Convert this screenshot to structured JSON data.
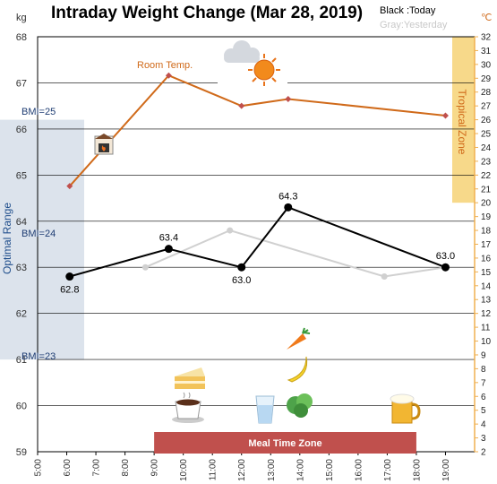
{
  "chart_data": {
    "type": "line",
    "title": "Intraday Weight Change (Mar 28, 2019)",
    "legend": {
      "today": "Black :Today",
      "yesterday": "Gray:Yesterday"
    },
    "y_left": {
      "unit": "kg",
      "range": [
        59,
        68
      ],
      "ticks": [
        "59",
        "60",
        "61",
        "62",
        "63",
        "64",
        "65",
        "66",
        "67",
        "68"
      ]
    },
    "y_right": {
      "unit": "℃",
      "range": [
        2,
        32
      ],
      "ticks": [
        "2",
        "3",
        "4",
        "5",
        "6",
        "7",
        "8",
        "9",
        "10",
        "11",
        "12",
        "13",
        "14",
        "15",
        "16",
        "17",
        "18",
        "19",
        "20",
        "21",
        "22",
        "23",
        "24",
        "25",
        "26",
        "27",
        "28",
        "29",
        "30",
        "31",
        "32"
      ]
    },
    "x_axis": {
      "range": [
        5,
        20
      ],
      "ticks": [
        "5:00",
        "6:00",
        "7:00",
        "8:00",
        "9:00",
        "10:00",
        "11:00",
        "12:00",
        "13:00",
        "14:00",
        "15:00",
        "16:00",
        "17:00",
        "18:00",
        "19:00"
      ]
    },
    "series": [
      {
        "name": "Today",
        "color": "#000000",
        "x": [
          6.1,
          9.5,
          12.0,
          13.6,
          19.0
        ],
        "y": [
          62.8,
          63.4,
          63.0,
          64.3,
          63.0
        ],
        "labels": [
          "62.8",
          "63.4",
          "63.0",
          "64.3",
          "63.0"
        ]
      },
      {
        "name": "Yesterday",
        "color": "#d0d0d0",
        "x": [
          8.7,
          11.6,
          16.9,
          19.0
        ],
        "y": [
          63.0,
          63.8,
          62.8,
          63.0
        ]
      },
      {
        "name": "Room Temp.",
        "color": "#d06a1a",
        "axis": "right",
        "x": [
          6.1,
          9.5,
          12.0,
          13.6,
          19.0
        ],
        "y": [
          21.2,
          29.2,
          27.0,
          27.5,
          26.3
        ]
      }
    ],
    "annotations": {
      "bmi_25": "BMI=25",
      "bmi_24": "BMI=24",
      "bmi_23": "BMI=23",
      "optimal_range": "Optimal Range",
      "tropical_zone": "Tropical Zone",
      "meal_zone": "Meal Time Zone",
      "room_temp": "Room Temp."
    },
    "bands": {
      "optimal_range_kg": [
        61,
        66.2
      ],
      "tropical_zone_celsius": [
        20,
        32
      ],
      "meal_time_zone_hours": [
        9,
        18
      ]
    },
    "colors": {
      "optimal": "#dce3ec",
      "tropical": "#f7d98a",
      "meal": "#c0504d",
      "grid": "#000000",
      "right_axis": "#f0b050"
    },
    "icons": [
      "heater-icon",
      "sun-cloud-icon",
      "cake-icon",
      "coffee-icon",
      "water-glass-icon",
      "carrot-icon",
      "banana-icon",
      "lettuce-icon",
      "beer-icon"
    ]
  }
}
